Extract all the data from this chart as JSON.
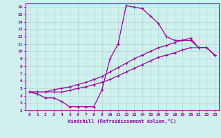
{
  "xlabel": "Windchill (Refroidissement éolien,°C)",
  "xlim": [
    -0.5,
    23.5
  ],
  "ylim": [
    2,
    16.5
  ],
  "xticks": [
    0,
    1,
    2,
    3,
    4,
    5,
    6,
    7,
    8,
    9,
    10,
    11,
    12,
    13,
    14,
    15,
    16,
    17,
    18,
    19,
    20,
    21,
    22,
    23
  ],
  "yticks": [
    2,
    3,
    4,
    5,
    6,
    7,
    8,
    9,
    10,
    11,
    12,
    13,
    14,
    15,
    16
  ],
  "bg_color": "#cff0ee",
  "line_color": "#990099",
  "grid_color": "#b0d8d0",
  "line1_x": [
    0,
    1,
    2,
    3,
    4,
    5,
    6,
    7,
    8,
    9,
    10,
    11,
    12,
    13,
    14,
    15,
    16,
    17,
    18,
    19,
    20,
    21,
    22,
    23
  ],
  "line1_y": [
    4.5,
    4.2,
    3.7,
    3.7,
    3.2,
    2.5,
    2.5,
    2.5,
    2.5,
    4.8,
    9.0,
    11.0,
    16.2,
    16.0,
    15.8,
    14.8,
    13.8,
    12.0,
    11.5,
    11.5,
    11.5,
    10.5,
    10.5,
    9.5
  ],
  "line2_x": [
    0,
    1,
    2,
    3,
    4,
    5,
    6,
    7,
    8,
    9,
    10,
    11,
    12,
    13,
    14,
    15,
    16,
    17,
    18,
    19,
    20,
    21,
    22,
    23
  ],
  "line2_y": [
    4.5,
    4.5,
    4.5,
    4.8,
    5.0,
    5.2,
    5.5,
    5.8,
    6.2,
    6.6,
    7.2,
    7.8,
    8.4,
    9.0,
    9.5,
    10.0,
    10.5,
    10.8,
    11.2,
    11.5,
    11.8,
    10.5,
    10.5,
    9.5
  ],
  "line3_x": [
    0,
    1,
    2,
    3,
    4,
    5,
    6,
    7,
    8,
    9,
    10,
    11,
    12,
    13,
    14,
    15,
    16,
    17,
    18,
    19,
    20,
    21,
    22,
    23
  ],
  "line3_y": [
    4.5,
    4.5,
    4.5,
    4.5,
    4.5,
    4.7,
    5.0,
    5.2,
    5.5,
    5.8,
    6.2,
    6.7,
    7.2,
    7.7,
    8.2,
    8.7,
    9.2,
    9.5,
    9.8,
    10.2,
    10.5,
    10.5,
    10.5,
    9.5
  ]
}
